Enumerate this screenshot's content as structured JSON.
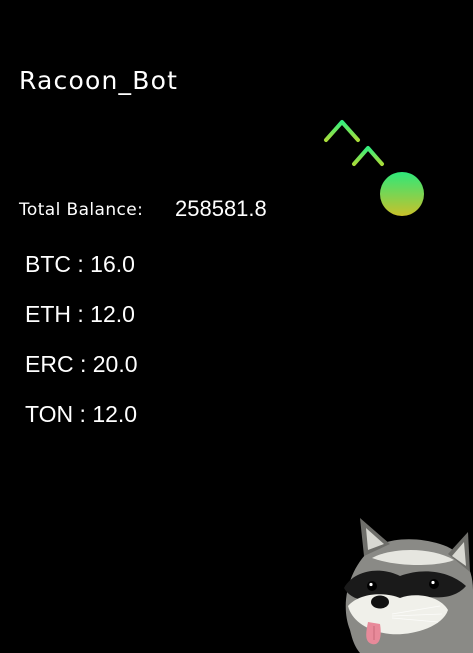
{
  "app": {
    "title": "Racoon_Bot"
  },
  "balance": {
    "label": "Total Balance:",
    "value": "258581.8"
  },
  "coins": [
    {
      "symbol": "BTC",
      "amount": "16.0"
    },
    {
      "symbol": "ETH",
      "amount": "12.0"
    },
    {
      "symbol": "ERC",
      "amount": "20.0"
    },
    {
      "symbol": "TON",
      "amount": "12.0"
    }
  ],
  "separator": " : ",
  "graphic": {
    "icon": "trend-up-arrows-icon",
    "accent_top": "#2ee87a",
    "accent_bottom": "#c9c12a"
  },
  "mascot": {
    "icon": "raccoon-mascot"
  }
}
